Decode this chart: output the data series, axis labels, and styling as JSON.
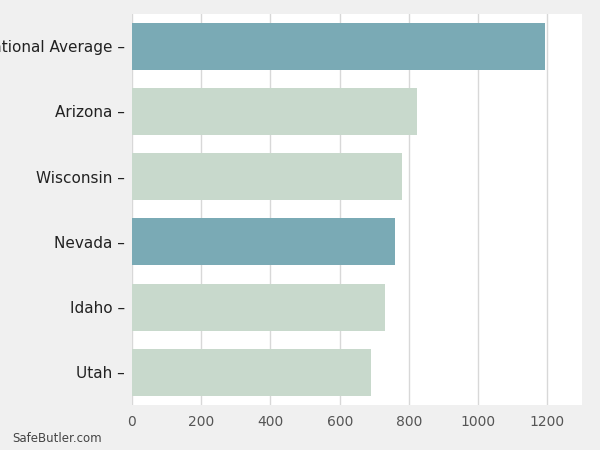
{
  "categories": [
    "Utah",
    "Idaho",
    "Nevada",
    "Wisconsin",
    "Arizona",
    "National Average"
  ],
  "values": [
    689,
    731,
    759,
    779,
    822,
    1192
  ],
  "bar_colors": [
    "#c8d9cc",
    "#c8d9cc",
    "#7aaab5",
    "#c8d9cc",
    "#c8d9cc",
    "#7aaab5"
  ],
  "background_color": "#f0f0f0",
  "bar_area_color": "#ffffff",
  "xlim": [
    0,
    1300
  ],
  "xticks": [
    0,
    200,
    400,
    600,
    800,
    1000,
    1200
  ],
  "footnote": "SafeButler.com",
  "bar_height": 0.72,
  "grid_color": "#d8d8d8",
  "label_fontsize": 11,
  "tick_fontsize": 10
}
